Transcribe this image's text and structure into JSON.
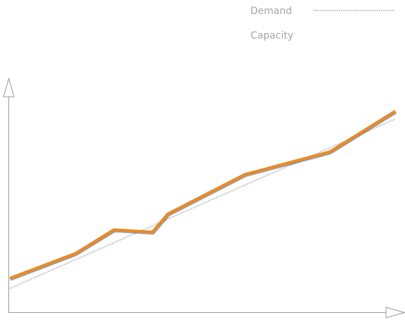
{
  "chart_data": {
    "type": "line",
    "title": "",
    "xlabel": "",
    "ylabel": "",
    "grid": false,
    "legend_placement": "top-right",
    "axis_color": "#999999",
    "xlim": [
      0,
      100
    ],
    "ylim": [
      0,
      100
    ],
    "series": [
      {
        "name": "Demand",
        "style": "dotted",
        "color": "#b8b8b8",
        "x": [
          0,
          100
        ],
        "y": [
          10.5,
          85.5
        ]
      },
      {
        "name": "Capacity",
        "style": "solid",
        "color": "#e98a25",
        "x": [
          0,
          17,
          27,
          37,
          41,
          61,
          83,
          100
        ],
        "y": [
          15,
          26,
          36.5,
          35.5,
          43.5,
          61,
          71,
          89
        ]
      }
    ]
  }
}
